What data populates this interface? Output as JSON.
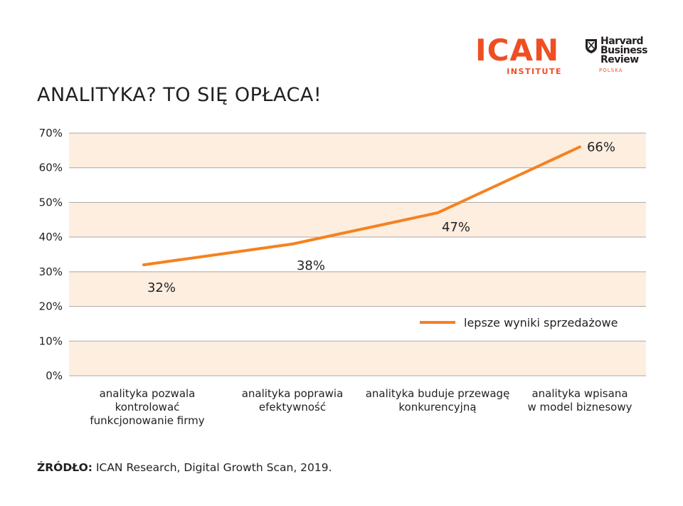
{
  "logos": {
    "ican_main": "ICAN",
    "ican_sub": "INSTITUTE",
    "hbr_lines": [
      "Harvard",
      "Business",
      "Review"
    ],
    "hbr_sub": "POLSKA"
  },
  "title": "ANALITYKA? TO SIĘ OPŁACA!",
  "source": {
    "label": "ŹRÓDŁO:",
    "text": "ICAN Research, Digital Growth Scan, 2019."
  },
  "colors": {
    "accent": "#f58220",
    "band": "#fdeee0",
    "grid": "#a7a9ac",
    "text": "#231f20",
    "brand": "#ef4e23"
  },
  "chart_data": {
    "type": "line",
    "ylim": [
      0,
      70
    ],
    "yticks": [
      0,
      10,
      20,
      30,
      40,
      50,
      60,
      70
    ],
    "ytick_labels": [
      "0%",
      "10%",
      "20%",
      "30%",
      "40%",
      "50%",
      "60%",
      "70%"
    ],
    "categories": [
      [
        "analityka pozwala",
        "kontrolować",
        "funkcjonowanie firmy"
      ],
      [
        "analityka poprawia",
        "efektywność"
      ],
      [
        "analityka buduje przewagę",
        "konkurencyjną"
      ],
      [
        "analityka wpisana",
        "w model biznesowy"
      ]
    ],
    "series": [
      {
        "name": "lepsze wyniki sprzedażowe",
        "values": [
          32,
          38,
          47,
          66
        ],
        "labels": [
          "32%",
          "38%",
          "47%",
          "66%"
        ]
      }
    ],
    "legend": "bottom-right",
    "grid": true
  }
}
